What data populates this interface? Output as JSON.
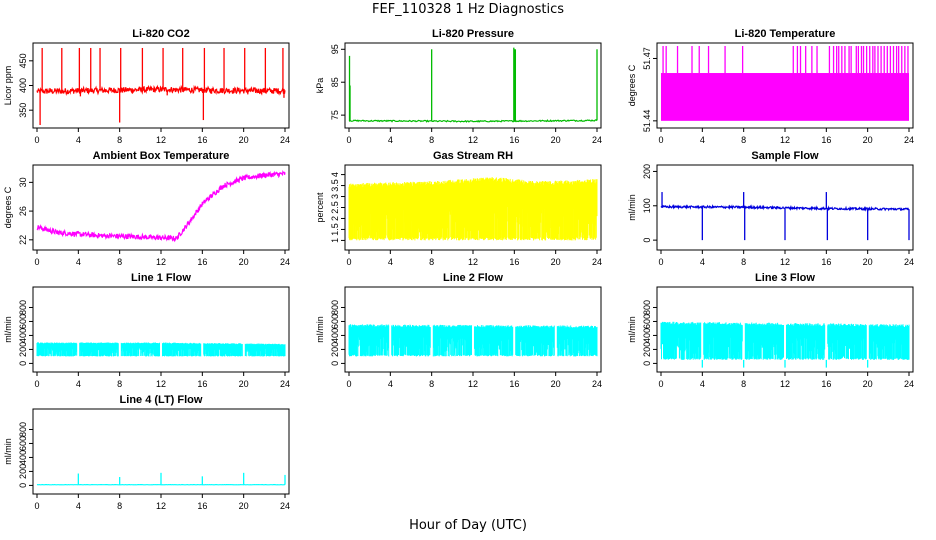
{
  "title": "FEF_110328  1 Hz Diagnostics",
  "xlabel": "Hour of Day (UTC)",
  "chart_data": [
    {
      "type": "line",
      "title": "Li-820 CO2",
      "ylabel": "Licor ppm",
      "color": "#ff0000",
      "xlim": [
        0,
        24
      ],
      "xticks": [
        0,
        4,
        8,
        12,
        16,
        20,
        24
      ],
      "ylim": [
        320,
        480
      ],
      "yticks": [
        350,
        400,
        450
      ],
      "baseline": [
        [
          0,
          388
        ],
        [
          6,
          390
        ],
        [
          12,
          392
        ],
        [
          18,
          390
        ],
        [
          24,
          389
        ]
      ],
      "spikes": [
        [
          0.3,
          320
        ],
        [
          0.5,
          476
        ],
        [
          2.4,
          476
        ],
        [
          2.6,
          384
        ],
        [
          4.1,
          476
        ],
        [
          4.2,
          378
        ],
        [
          5.2,
          476
        ],
        [
          6.1,
          476
        ],
        [
          8.1,
          476
        ],
        [
          8.0,
          325
        ],
        [
          10.2,
          476
        ],
        [
          12.2,
          476
        ],
        [
          12.6,
          380
        ],
        [
          14.1,
          476
        ],
        [
          16.2,
          476
        ],
        [
          16.1,
          330
        ],
        [
          18.1,
          476
        ],
        [
          20.1,
          476
        ],
        [
          20.4,
          382
        ],
        [
          22.1,
          476
        ],
        [
          23.8,
          476
        ],
        [
          23.9,
          375
        ]
      ],
      "noise": 6,
      "density": 500
    },
    {
      "type": "line",
      "title": "Li-820 Pressure",
      "ylabel": "kPa",
      "color": "#00bb00",
      "xlim": [
        0,
        24
      ],
      "xticks": [
        0,
        4,
        8,
        12,
        16,
        20,
        24
      ],
      "ylim": [
        72,
        96
      ],
      "yticks": [
        75,
        85,
        95
      ],
      "baseline": [
        [
          0,
          73.3
        ],
        [
          12,
          73.1
        ],
        [
          16,
          73.2
        ],
        [
          24,
          73.4
        ]
      ],
      "spikes": [
        [
          0.05,
          93
        ],
        [
          0.1,
          84
        ],
        [
          8.0,
          95
        ],
        [
          15.95,
          95.5
        ],
        [
          16.0,
          95
        ],
        [
          16.1,
          95
        ],
        [
          24.0,
          95
        ]
      ],
      "noise": 0.2,
      "density": 300
    },
    {
      "type": "band",
      "title": "Li-820 Temperature",
      "ylabel": "degrees C",
      "color": "#ff00ff",
      "xlim": [
        0,
        24
      ],
      "xticks": [
        0,
        4,
        8,
        12,
        16,
        20,
        24
      ],
      "ylim": [
        51.438,
        51.476
      ],
      "yticks": [
        51.44,
        51.47
      ],
      "band": [
        51.44,
        51.463
      ],
      "spikes": [
        0.2,
        0.5,
        1.6,
        3.0,
        3.7,
        4.6,
        6.2,
        7.9,
        12.8,
        13.2,
        13.5,
        14.0,
        14.6,
        15.1,
        16.3,
        16.7,
        17.0,
        17.2,
        17.5,
        17.8,
        18.2,
        18.4,
        18.9,
        19.1,
        19.4,
        19.6,
        19.9,
        20.2,
        20.5,
        20.7,
        21.0,
        21.3,
        21.6,
        21.9,
        22.2,
        22.5,
        22.8,
        23.0,
        23.3,
        23.6,
        23.9
      ],
      "spike_top": 51.476
    },
    {
      "type": "line",
      "title": "Ambient Box Temperature",
      "ylabel": "degrees C",
      "color": "#ff00ff",
      "xlim": [
        0,
        24
      ],
      "xticks": [
        0,
        4,
        8,
        12,
        16,
        20,
        24
      ],
      "ylim": [
        21,
        32
      ],
      "yticks": [
        22,
        26,
        30
      ],
      "baseline": [
        [
          0,
          23.8
        ],
        [
          2,
          23.0
        ],
        [
          6,
          22.6
        ],
        [
          10,
          22.4
        ],
        [
          13.5,
          22.2
        ],
        [
          14.5,
          24.0
        ],
        [
          16,
          27.0
        ],
        [
          18,
          29.5
        ],
        [
          20,
          30.6
        ],
        [
          22,
          31.0
        ],
        [
          24,
          31.2
        ]
      ],
      "spikes": [],
      "noise": 0.35,
      "density": 600
    },
    {
      "type": "noise",
      "title": "Gas Stream RH",
      "ylabel": "percent",
      "color": "#ffff00",
      "xlim": [
        0,
        24
      ],
      "xticks": [
        0,
        4,
        8,
        12,
        16,
        20,
        24
      ],
      "ylim": [
        0.7,
        4.3
      ],
      "yticks": [
        1.0,
        1.5,
        2.0,
        2.5,
        3.0,
        3.5,
        4.0
      ],
      "top": [
        [
          0,
          3.6
        ],
        [
          8,
          3.7
        ],
        [
          14,
          3.9
        ],
        [
          18,
          3.7
        ],
        [
          24,
          3.8
        ]
      ],
      "floor": 1.0,
      "density": 700
    },
    {
      "type": "line",
      "title": "Sample Flow",
      "ylabel": "ml/min",
      "color": "#0000dd",
      "xlim": [
        0,
        24
      ],
      "xticks": [
        0,
        4,
        8,
        12,
        16,
        20,
        24
      ],
      "ylim": [
        -20,
        210
      ],
      "yticks": [
        0,
        100,
        200
      ],
      "baseline": [
        [
          0,
          97
        ],
        [
          8,
          96
        ],
        [
          16,
          92
        ],
        [
          24,
          90
        ]
      ],
      "spikes": [
        [
          0.1,
          140
        ],
        [
          4.0,
          0
        ],
        [
          8.0,
          140
        ],
        [
          8.1,
          0
        ],
        [
          12.0,
          0
        ],
        [
          16.0,
          140
        ],
        [
          16.1,
          0
        ],
        [
          20.0,
          0
        ],
        [
          24.0,
          0
        ]
      ],
      "noise": 3,
      "density": 500
    },
    {
      "type": "noise",
      "title": "Line 1 Flow",
      "ylabel": "ml/min",
      "color": "#00ffff",
      "xlim": [
        0,
        24
      ],
      "xticks": [
        0,
        4,
        8,
        12,
        16,
        20,
        24
      ],
      "ylim": [
        -80,
        1050
      ],
      "yticks": [
        0,
        200,
        400,
        600,
        800
      ],
      "top": [
        [
          0,
          300
        ],
        [
          12,
          300
        ],
        [
          24,
          280
        ]
      ],
      "floor": 100,
      "gaps": [
        4,
        8,
        12,
        16,
        20
      ],
      "density": 500
    },
    {
      "type": "noise",
      "title": "Line 2 Flow",
      "ylabel": "ml/min",
      "color": "#00ffff",
      "xlim": [
        0,
        24
      ],
      "xticks": [
        0,
        4,
        8,
        12,
        16,
        20,
        24
      ],
      "ylim": [
        -80,
        1050
      ],
      "yticks": [
        0,
        200,
        400,
        600,
        800
      ],
      "top": [
        [
          0,
          560
        ],
        [
          12,
          550
        ],
        [
          24,
          540
        ]
      ],
      "floor": 100,
      "gaps": [
        4,
        8,
        12,
        16,
        20
      ],
      "density": 500
    },
    {
      "type": "noise",
      "title": "Line 3 Flow",
      "ylabel": "ml/min",
      "color": "#00ffff",
      "xlim": [
        0,
        24
      ],
      "xticks": [
        0,
        4,
        8,
        12,
        16,
        20,
        24
      ],
      "ylim": [
        -80,
        1050
      ],
      "yticks": [
        0,
        200,
        400,
        600,
        800
      ],
      "top": [
        [
          0,
          600
        ],
        [
          12,
          580
        ],
        [
          24,
          560
        ]
      ],
      "floor": 50,
      "gaps": [
        4,
        8,
        12,
        16,
        20
      ],
      "dips": [
        4,
        8,
        12,
        16,
        20
      ],
      "density": 500
    },
    {
      "type": "line",
      "title": "Line 4 (LT) Flow",
      "ylabel": "ml/min",
      "color": "#00ffff",
      "xlim": [
        0,
        24
      ],
      "xticks": [
        0,
        4,
        8,
        12,
        16,
        20,
        24
      ],
      "ylim": [
        -80,
        1050
      ],
      "yticks": [
        0,
        200,
        400,
        600,
        800
      ],
      "baseline": [
        [
          0,
          10
        ],
        [
          24,
          10
        ]
      ],
      "spikes": [
        [
          4.0,
          170
        ],
        [
          8.0,
          120
        ],
        [
          12.0,
          180
        ],
        [
          16.0,
          130
        ],
        [
          20.0,
          180
        ],
        [
          24.0,
          150
        ]
      ],
      "noise": 2,
      "density": 300
    }
  ]
}
